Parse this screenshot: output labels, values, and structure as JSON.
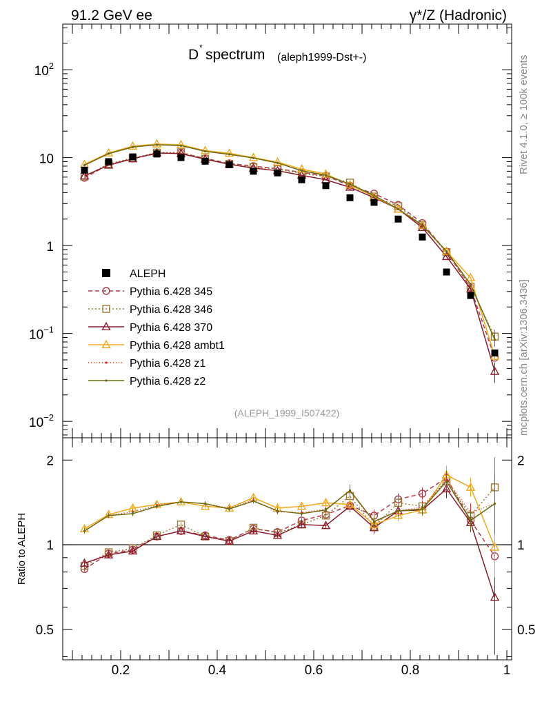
{
  "header": {
    "left": "91.2 GeV ee",
    "right": "γ*/Z (Hadronic)"
  },
  "side_labels": {
    "rivet": "Rivet 4.1.0, ≥ 100k events",
    "mcplots": "mcplots.cern.ch [arXiv:1306.3436]"
  },
  "chart_data": [
    {
      "type": "scatter",
      "title": "D* spectrum",
      "title_main": "D",
      "title_sup": "*",
      "title_rest": " spectrum",
      "subtitle": "(aleph1999-Dst+-)",
      "analysis_id": "(ALEPH_1999_I507422)",
      "yscale": "log",
      "xlim": [
        0.08,
        1.01
      ],
      "ylim": [
        0.0065,
        330
      ],
      "yticks": [
        {
          "value": 0.01,
          "label_base": "10",
          "label_exp": "−2"
        },
        {
          "value": 0.1,
          "label_base": "10",
          "label_exp": "−1"
        },
        {
          "value": 1,
          "label_base": "1",
          "label_exp": ""
        },
        {
          "value": 10,
          "label_base": "10",
          "label_exp": ""
        },
        {
          "value": 100,
          "label_base": "10",
          "label_exp": "2"
        }
      ],
      "x": [
        0.125,
        0.175,
        0.225,
        0.275,
        0.325,
        0.375,
        0.425,
        0.475,
        0.525,
        0.575,
        0.625,
        0.675,
        0.725,
        0.775,
        0.825,
        0.875,
        0.925,
        0.975
      ],
      "data": {
        "name": "ALEPH",
        "color": "#000000",
        "values": [
          7.2,
          9.0,
          10.2,
          11.0,
          10.0,
          9.1,
          8.3,
          7.0,
          6.7,
          5.6,
          4.8,
          3.5,
          3.1,
          2.0,
          1.25,
          0.5,
          0.27,
          0.06
        ]
      },
      "series": [
        {
          "name": "Pythia 6.428 345",
          "color": "#b03a48",
          "dash": "6,4",
          "marker": "circle",
          "values": [
            5.9,
            8.3,
            9.8,
            11.1,
            11.3,
            9.8,
            8.6,
            8.0,
            7.5,
            6.8,
            6.2,
            4.8,
            3.9,
            2.9,
            1.8,
            0.85,
            0.33,
            0.053
          ]
        },
        {
          "name": "Pythia 6.428 346",
          "color": "#9a7b3a",
          "dash": "2,3",
          "marker": "square",
          "values": [
            6.1,
            8.5,
            9.9,
            11.4,
            11.5,
            9.7,
            8.5,
            7.8,
            7.4,
            6.6,
            6.1,
            5.2,
            3.6,
            2.8,
            1.7,
            0.84,
            0.34,
            0.092
          ]
        },
        {
          "name": "Pythia 6.428 370",
          "color": "#8b1a2b",
          "dash": "",
          "marker": "triangle",
          "values": [
            6.2,
            8.2,
            9.7,
            11.3,
            11.1,
            9.6,
            8.4,
            7.6,
            7.1,
            6.3,
            5.6,
            4.6,
            3.5,
            2.6,
            1.6,
            0.75,
            0.32,
            0.037
          ]
        },
        {
          "name": "Pythia 6.428 ambt1",
          "color": "#f0a818",
          "dash": "",
          "marker": "triangle",
          "values": [
            8.4,
            11.3,
            13.5,
            14.3,
            14.0,
            12.0,
            11.2,
            10.0,
            8.9,
            7.4,
            6.5,
            4.9,
            3.6,
            2.6,
            1.7,
            0.86,
            0.43,
            0.055
          ]
        },
        {
          "name": "Pythia 6.428 z1",
          "color": "#e03020",
          "dash": "1,3",
          "marker": "dot",
          "values": [
            8.2,
            11.1,
            13.2,
            14.0,
            13.7,
            11.8,
            10.9,
            9.9,
            8.7,
            7.1,
            6.3,
            5.0,
            3.7,
            2.6,
            1.7,
            0.86,
            0.36,
            0.085
          ]
        },
        {
          "name": "Pythia 6.428 z2",
          "color": "#6b6b10",
          "dash": "",
          "marker": "dot",
          "values": [
            8.2,
            11.1,
            13.2,
            14.0,
            13.7,
            11.8,
            10.9,
            9.9,
            8.7,
            7.1,
            6.3,
            5.0,
            3.7,
            2.6,
            1.7,
            0.86,
            0.36,
            0.085
          ]
        }
      ]
    },
    {
      "type": "line",
      "ylabel": "Ratio to ALEPH",
      "yscale": "log",
      "xlim": [
        0.08,
        1.01
      ],
      "ylim": [
        0.39,
        2.4
      ],
      "yticks": [
        {
          "value": 0.5,
          "label": "0.5"
        },
        {
          "value": 1,
          "label": "1"
        },
        {
          "value": 2,
          "label": "2"
        }
      ],
      "xticks": [
        {
          "value": 0.2,
          "label": "0.2"
        },
        {
          "value": 0.4,
          "label": "0.4"
        },
        {
          "value": 0.6,
          "label": "0.6"
        },
        {
          "value": 0.8,
          "label": "0.8"
        },
        {
          "value": 1,
          "label": "1"
        }
      ],
      "reference": 1,
      "series": [
        {
          "name": "Pythia 6.428 345",
          "color": "#b03a48",
          "dash": "6,4",
          "marker": "circle",
          "values": [
            0.82,
            0.93,
            0.96,
            1.07,
            1.12,
            1.08,
            1.04,
            1.14,
            1.11,
            1.22,
            1.28,
            1.38,
            1.27,
            1.45,
            1.52,
            1.73,
            1.22,
            0.91
          ]
        },
        {
          "name": "Pythia 6.428 346",
          "color": "#9a7b3a",
          "dash": "2,3",
          "marker": "square",
          "values": [
            0.84,
            0.94,
            0.97,
            1.08,
            1.18,
            1.07,
            1.03,
            1.15,
            1.1,
            1.18,
            1.27,
            1.49,
            1.16,
            1.41,
            1.37,
            1.68,
            1.27,
            1.6
          ]
        },
        {
          "name": "Pythia 6.428 370",
          "color": "#8b1a2b",
          "dash": "",
          "marker": "triangle",
          "values": [
            0.86,
            0.92,
            0.95,
            1.07,
            1.12,
            1.07,
            1.03,
            1.12,
            1.08,
            1.18,
            1.17,
            1.37,
            1.15,
            1.32,
            1.33,
            1.58,
            1.2,
            0.65
          ]
        },
        {
          "name": "Pythia 6.428 ambt1",
          "color": "#f0a818",
          "dash": "",
          "marker": "triangle",
          "values": [
            1.14,
            1.28,
            1.35,
            1.39,
            1.42,
            1.37,
            1.35,
            1.47,
            1.35,
            1.37,
            1.41,
            1.39,
            1.18,
            1.27,
            1.33,
            1.77,
            1.6,
            0.98
          ]
        },
        {
          "name": "Pythia 6.428 z1",
          "color": "#e03020",
          "dash": "1,3",
          "marker": "dot",
          "values": [
            1.12,
            1.27,
            1.31,
            1.38,
            1.42,
            1.4,
            1.35,
            1.44,
            1.31,
            1.3,
            1.34,
            1.55,
            1.2,
            1.32,
            1.36,
            1.7,
            1.3,
            1.4
          ]
        },
        {
          "name": "Pythia 6.428 z2",
          "color": "#6b6b10",
          "dash": "",
          "marker": "dot",
          "values": [
            1.12,
            1.27,
            1.29,
            1.37,
            1.42,
            1.4,
            1.34,
            1.43,
            1.32,
            1.29,
            1.33,
            1.56,
            1.21,
            1.32,
            1.34,
            1.68,
            1.22,
            1.4
          ]
        }
      ]
    }
  ]
}
